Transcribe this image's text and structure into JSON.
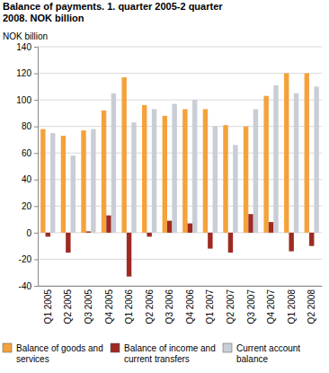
{
  "chart_data": {
    "type": "bar",
    "title": "Balance of payments. 1. quarter 2005-2 quarter 2008. NOK billion",
    "y_label": "NOK billion",
    "categories": [
      "Q1 2005",
      "Q2 2005",
      "Q3 2005",
      "Q4 2005",
      "Q1 2006",
      "Q2 2006",
      "Q3 2006",
      "Q4 2006",
      "Q1 2007",
      "Q2 2007",
      "Q3 2007",
      "Q4 2007",
      "Q1 2008",
      "Q2 2008"
    ],
    "series": [
      {
        "name": "Balance of goods and services",
        "color": "#f4a23c",
        "values": [
          78,
          73,
          77,
          92,
          117,
          96,
          88,
          93,
          93,
          81,
          80,
          103,
          120,
          120
        ]
      },
      {
        "name": "Balance of income and current transfers",
        "color": "#9e2a22",
        "values": [
          -3,
          -15,
          1,
          13,
          -33,
          -3,
          9,
          7,
          -12,
          -15,
          14,
          8,
          -14,
          -10
        ]
      },
      {
        "name": "Current account balance",
        "color": "#c9cdd6",
        "values": [
          75,
          58,
          78,
          105,
          83,
          93,
          97,
          100,
          80,
          66,
          93,
          111,
          105,
          110
        ]
      }
    ],
    "ylim": [
      -40,
      140
    ],
    "yticks": [
      -40,
      -20,
      0,
      20,
      40,
      60,
      80,
      100,
      120,
      140
    ],
    "grid": true,
    "legend": "bottom"
  }
}
